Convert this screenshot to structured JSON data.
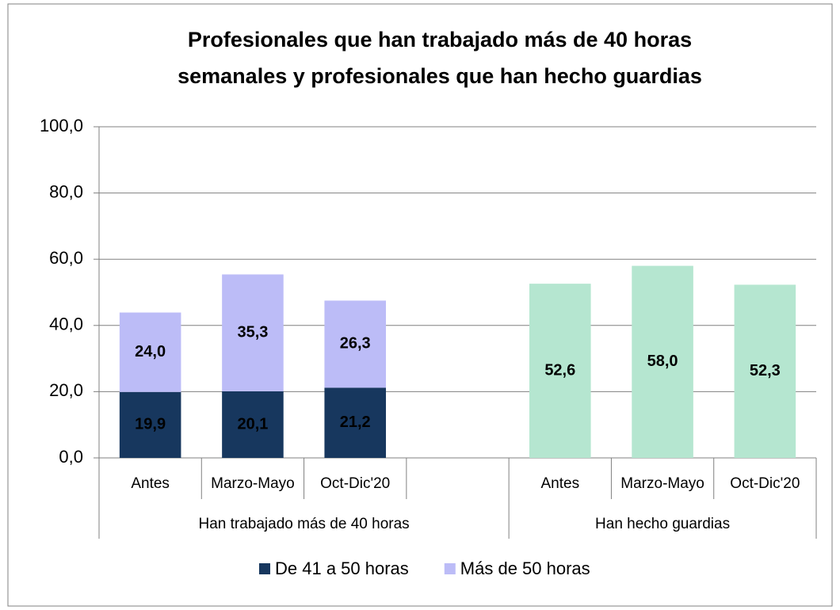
{
  "chart_data": {
    "type": "bar",
    "stacked": true,
    "title": [
      "Profesionales que han trabajado más de 40 horas",
      "semanales y profesionales que han hecho guardias"
    ],
    "categories": [
      "Antes",
      "Marzo-Mayo",
      "Oct-Dic'20",
      null,
      "Antes",
      "Marzo-Mayo",
      "Oct-Dic'20"
    ],
    "groups": [
      {
        "label": "Han trabajado más de 40 horas",
        "span": 4
      },
      {
        "label": "Han hecho guardias",
        "span": 3
      }
    ],
    "series": [
      {
        "name": "De 41 a 50 horas",
        "color": "#17375e",
        "label_color": "#ffffff",
        "values": [
          19.9,
          20.1,
          21.2,
          null,
          null,
          null,
          null
        ],
        "value_labels": [
          "19,9",
          "20,1",
          "21,2",
          null,
          null,
          null,
          null
        ]
      },
      {
        "name": "Más de 50 horas",
        "color": "#bcbcf7",
        "label_color": "#000000",
        "values": [
          24.0,
          35.3,
          26.3,
          null,
          null,
          null,
          null
        ],
        "value_labels": [
          "24,0",
          "35,3",
          "26,3",
          null,
          null,
          null,
          null
        ]
      },
      {
        "color": "#b5e6d0",
        "label_color": "#000000",
        "values": [
          null,
          null,
          null,
          null,
          52.6,
          58.0,
          52.3
        ],
        "value_labels": [
          null,
          null,
          null,
          null,
          "52,6",
          "58,0",
          "52,3"
        ]
      }
    ],
    "ylim": [
      0,
      100
    ],
    "yticks": [
      {
        "value": 0,
        "label": "0,0"
      },
      {
        "value": 20,
        "label": "20,0"
      },
      {
        "value": 40,
        "label": "40,0"
      },
      {
        "value": 60,
        "label": "60,0"
      },
      {
        "value": 80,
        "label": "80,0"
      },
      {
        "value": 100,
        "label": "100,0"
      }
    ],
    "grid": true,
    "legend": "bottom"
  }
}
